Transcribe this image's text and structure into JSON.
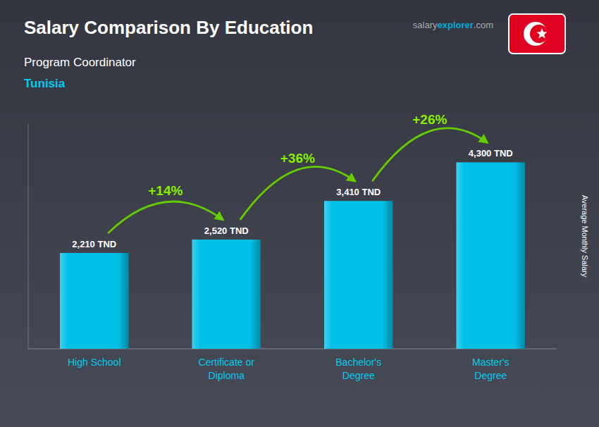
{
  "chart_data": {
    "type": "bar",
    "title": "Salary Comparison By Education",
    "subtitle": "Program Coordinator",
    "annotations": [
      "Tunisia",
      "salary",
      "explorer",
      ".com"
    ],
    "categories": [
      "High School",
      "Certificate or\nDiploma",
      "Bachelor's\nDegree",
      "Master's\nDegree"
    ],
    "values": [
      2210,
      2520,
      3410,
      4300
    ],
    "value_labels": [
      "2,210 TND",
      "2,520 TND",
      "3,410 TND",
      "4,300 TND"
    ],
    "change_values": [
      14,
      36,
      26
    ],
    "change_labels": [
      "+14%",
      "+36%",
      "+26%"
    ],
    "y_label": "Average Monthly Salary",
    "color": "#00c0e8",
    "ylim": [
      0,
      5200
    ],
    "data_labels": true,
    "tick_labels": false,
    "grid": false
  }
}
